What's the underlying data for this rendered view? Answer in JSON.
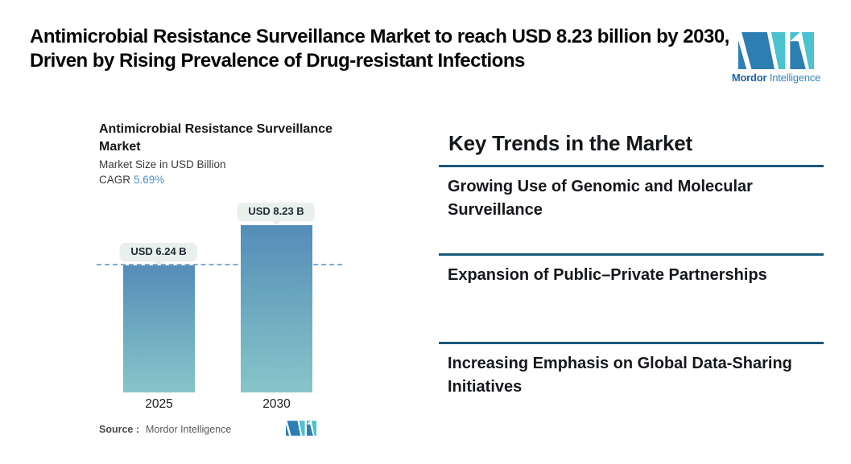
{
  "header": {
    "title": "Antimicrobial Resistance Surveillance Market to reach USD 8.23 billion by 2030, Driven by Rising Prevalence of Drug-resistant Infections",
    "brand": {
      "name_bold": "Mordor",
      "name_regular": "Intelligence"
    }
  },
  "chart": {
    "title": "Antimicrobial Resistance Surveillance Market",
    "subtitle": "Market Size in USD Billion",
    "cagr_label": "CAGR",
    "cagr_value": "5.69%",
    "source_label": "Source :",
    "source_value": "Mordor Intelligence"
  },
  "chart_data": {
    "type": "bar",
    "title": "Antimicrobial Resistance Surveillance Market",
    "ylabel": "Market Size in USD Billion",
    "categories": [
      "2025",
      "2030"
    ],
    "values": [
      6.24,
      8.23
    ],
    "value_labels": [
      "USD 6.24 B",
      "USD 8.23 B"
    ],
    "cagr_pct": 5.69,
    "dashed_reference_line_at": 6.24,
    "ylim": [
      0,
      9
    ],
    "grid": false,
    "legend": false
  },
  "trends": {
    "heading": "Key Trends in the Market",
    "items": [
      "Growing Use of Genomic and Molecular Surveillance",
      "Expansion of Public–Private Partnerships",
      "Increasing Emphasis on Global Data-Sharing Initiatives"
    ]
  },
  "colors": {
    "bar_gradient_top": "#548cb8",
    "bar_gradient_bottom": "#87c5ca",
    "dashed_line": "#7fabd2",
    "chip_background": "#e9efeb",
    "cagr_value_text": "#4e93cb",
    "separator_rule": "#19597a",
    "brand_teal": "#4ac2cf",
    "brand_blue": "#2d7eb3",
    "title_text": "#060606"
  }
}
